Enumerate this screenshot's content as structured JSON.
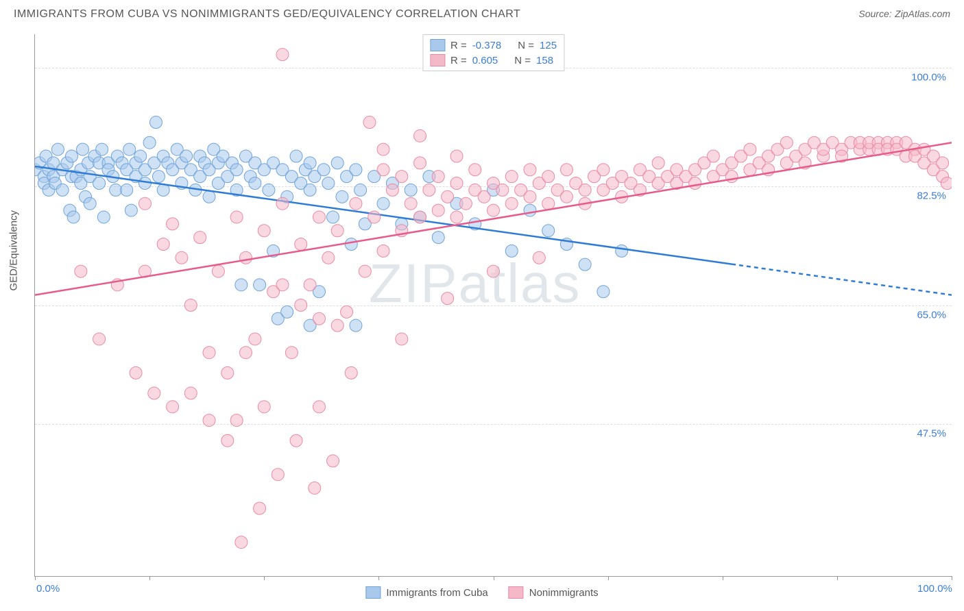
{
  "title": "IMMIGRANTS FROM CUBA VS NONIMMIGRANTS GED/EQUIVALENCY CORRELATION CHART",
  "source_label": "Source:",
  "source_name": "ZipAtlas.com",
  "watermark": "ZIPatlas",
  "y_axis_title": "GED/Equivalency",
  "chart": {
    "type": "scatter",
    "background_color": "#ffffff",
    "grid_color": "#dddddd",
    "axis_color": "#999999",
    "tick_label_color": "#3b7dd8",
    "xlim": [
      0,
      100
    ],
    "ylim": [
      25,
      105
    ],
    "x_ticks": [
      0,
      12.5,
      25,
      37.5,
      50,
      62.5,
      75,
      87.5,
      100
    ],
    "x_tick_labels": {
      "0": "0.0%",
      "100": "100.0%"
    },
    "y_grid": [
      47.5,
      65.0,
      82.5,
      100.0
    ],
    "y_tick_labels": [
      "47.5%",
      "65.0%",
      "82.5%",
      "100.0%"
    ],
    "marker_radius": 9,
    "marker_opacity": 0.55,
    "line_width": 2.5
  },
  "series": [
    {
      "id": "immigrants",
      "label": "Immigrants from Cuba",
      "color_fill": "#a8c8ec",
      "color_stroke": "#6fa3d8",
      "line_color": "#2e7cd6",
      "R": "-0.378",
      "N": "125",
      "trend": {
        "x1": 0,
        "y1": 85.5,
        "x2": 100,
        "y2": 66.5,
        "solid_until_x": 76
      },
      "points": [
        [
          0,
          85
        ],
        [
          0.5,
          86
        ],
        [
          1,
          84
        ],
        [
          1,
          83
        ],
        [
          1.2,
          87
        ],
        [
          1.5,
          85
        ],
        [
          1.5,
          82
        ],
        [
          2,
          86
        ],
        [
          2,
          84
        ],
        [
          2.2,
          83
        ],
        [
          2.5,
          88
        ],
        [
          3,
          85
        ],
        [
          3,
          82
        ],
        [
          3.5,
          86
        ],
        [
          3.8,
          79
        ],
        [
          4,
          87
        ],
        [
          4,
          84
        ],
        [
          4.2,
          78
        ],
        [
          4.5,
          84
        ],
        [
          5,
          85
        ],
        [
          5,
          83
        ],
        [
          5.2,
          88
        ],
        [
          5.5,
          81
        ],
        [
          5.8,
          86
        ],
        [
          6,
          84
        ],
        [
          6,
          80
        ],
        [
          6.5,
          87
        ],
        [
          7,
          86
        ],
        [
          7,
          83
        ],
        [
          7.3,
          88
        ],
        [
          7.5,
          78
        ],
        [
          8,
          86
        ],
        [
          8,
          85
        ],
        [
          8.5,
          84
        ],
        [
          8.8,
          82
        ],
        [
          9,
          87
        ],
        [
          9.5,
          86
        ],
        [
          10,
          85
        ],
        [
          10,
          82
        ],
        [
          10.3,
          88
        ],
        [
          10.5,
          79
        ],
        [
          11,
          86
        ],
        [
          11,
          84
        ],
        [
          11.5,
          87
        ],
        [
          12,
          85
        ],
        [
          12,
          83
        ],
        [
          12.5,
          89
        ],
        [
          13,
          86
        ],
        [
          13.2,
          92
        ],
        [
          13.5,
          84
        ],
        [
          14,
          87
        ],
        [
          14,
          82
        ],
        [
          14.5,
          86
        ],
        [
          15,
          85
        ],
        [
          15.5,
          88
        ],
        [
          16,
          86
        ],
        [
          16,
          83
        ],
        [
          16.5,
          87
        ],
        [
          17,
          85
        ],
        [
          17.5,
          82
        ],
        [
          18,
          87
        ],
        [
          18,
          84
        ],
        [
          18.5,
          86
        ],
        [
          19,
          85
        ],
        [
          19,
          81
        ],
        [
          19.5,
          88
        ],
        [
          20,
          86
        ],
        [
          20,
          83
        ],
        [
          20.5,
          87
        ],
        [
          21,
          84
        ],
        [
          21.5,
          86
        ],
        [
          22,
          85
        ],
        [
          22,
          82
        ],
        [
          22.5,
          68
        ],
        [
          23,
          87
        ],
        [
          23.5,
          84
        ],
        [
          24,
          86
        ],
        [
          24,
          83
        ],
        [
          24.5,
          68
        ],
        [
          25,
          85
        ],
        [
          25.5,
          82
        ],
        [
          26,
          86
        ],
        [
          26,
          73
        ],
        [
          26.5,
          63
        ],
        [
          27,
          85
        ],
        [
          27.5,
          64
        ],
        [
          27.5,
          81
        ],
        [
          28,
          84
        ],
        [
          28.5,
          87
        ],
        [
          29,
          83
        ],
        [
          29.5,
          85
        ],
        [
          30,
          82
        ],
        [
          30,
          86
        ],
        [
          30,
          62
        ],
        [
          30.5,
          84
        ],
        [
          31,
          67
        ],
        [
          31.5,
          85
        ],
        [
          32,
          83
        ],
        [
          32.5,
          78
        ],
        [
          33,
          86
        ],
        [
          33.5,
          81
        ],
        [
          34,
          84
        ],
        [
          34.5,
          74
        ],
        [
          35,
          85
        ],
        [
          35,
          62
        ],
        [
          35.5,
          82
        ],
        [
          36,
          77
        ],
        [
          37,
          84
        ],
        [
          38,
          80
        ],
        [
          39,
          83
        ],
        [
          40,
          77
        ],
        [
          41,
          82
        ],
        [
          42,
          78
        ],
        [
          43,
          84
        ],
        [
          44,
          75
        ],
        [
          46,
          80
        ],
        [
          48,
          77
        ],
        [
          50,
          82
        ],
        [
          52,
          73
        ],
        [
          54,
          79
        ],
        [
          56,
          76
        ],
        [
          58,
          74
        ],
        [
          60,
          71
        ],
        [
          62,
          67
        ],
        [
          64,
          73
        ]
      ]
    },
    {
      "id": "nonimmigrants",
      "label": "Nonimmigrants",
      "color_fill": "#f5b8c8",
      "color_stroke": "#e88aa5",
      "line_color": "#e85a8a",
      "R": "0.605",
      "N": "158",
      "trend": {
        "x1": 0,
        "y1": 66.5,
        "x2": 100,
        "y2": 89.0,
        "solid_until_x": 100
      },
      "points": [
        [
          5,
          70
        ],
        [
          7,
          60
        ],
        [
          9,
          68
        ],
        [
          11,
          55
        ],
        [
          12,
          70
        ],
        [
          13,
          52
        ],
        [
          14,
          74
        ],
        [
          15,
          50
        ],
        [
          16,
          72
        ],
        [
          17,
          65
        ],
        [
          18,
          75
        ],
        [
          19,
          58
        ],
        [
          20,
          70
        ],
        [
          21,
          55
        ],
        [
          22,
          78
        ],
        [
          22,
          48
        ],
        [
          22.5,
          30
        ],
        [
          23,
          72
        ],
        [
          24,
          60
        ],
        [
          24.5,
          35
        ],
        [
          25,
          76
        ],
        [
          26,
          67
        ],
        [
          26.5,
          40
        ],
        [
          27,
          80
        ],
        [
          27,
          102
        ],
        [
          28,
          58
        ],
        [
          28.5,
          45
        ],
        [
          29,
          74
        ],
        [
          30,
          68
        ],
        [
          30.5,
          38
        ],
        [
          31,
          78
        ],
        [
          31,
          50
        ],
        [
          32,
          72
        ],
        [
          32.5,
          42
        ],
        [
          33,
          76
        ],
        [
          34,
          64
        ],
        [
          34.5,
          55
        ],
        [
          35,
          80
        ],
        [
          36,
          70
        ],
        [
          36.5,
          92
        ],
        [
          37,
          78
        ],
        [
          38,
          73
        ],
        [
          38,
          85
        ],
        [
          39,
          82
        ],
        [
          40,
          76
        ],
        [
          40,
          84
        ],
        [
          41,
          80
        ],
        [
          42,
          78
        ],
        [
          42,
          86
        ],
        [
          43,
          82
        ],
        [
          44,
          79
        ],
        [
          44,
          84
        ],
        [
          45,
          81
        ],
        [
          46,
          78
        ],
        [
          46,
          83
        ],
        [
          47,
          80
        ],
        [
          48,
          82
        ],
        [
          48,
          85
        ],
        [
          49,
          81
        ],
        [
          50,
          83
        ],
        [
          50,
          79
        ],
        [
          51,
          82
        ],
        [
          52,
          84
        ],
        [
          52,
          80
        ],
        [
          53,
          82
        ],
        [
          54,
          81
        ],
        [
          54,
          85
        ],
        [
          55,
          83
        ],
        [
          56,
          80
        ],
        [
          56,
          84
        ],
        [
          57,
          82
        ],
        [
          58,
          81
        ],
        [
          58,
          85
        ],
        [
          59,
          83
        ],
        [
          60,
          82
        ],
        [
          60,
          80
        ],
        [
          61,
          84
        ],
        [
          62,
          82
        ],
        [
          62,
          85
        ],
        [
          63,
          83
        ],
        [
          64,
          81
        ],
        [
          64,
          84
        ],
        [
          65,
          83
        ],
        [
          66,
          82
        ],
        [
          66,
          85
        ],
        [
          67,
          84
        ],
        [
          68,
          83
        ],
        [
          68,
          86
        ],
        [
          69,
          84
        ],
        [
          70,
          83
        ],
        [
          70,
          85
        ],
        [
          71,
          84
        ],
        [
          72,
          85
        ],
        [
          72,
          83
        ],
        [
          73,
          86
        ],
        [
          74,
          84
        ],
        [
          74,
          87
        ],
        [
          75,
          85
        ],
        [
          76,
          86
        ],
        [
          76,
          84
        ],
        [
          77,
          87
        ],
        [
          78,
          85
        ],
        [
          78,
          88
        ],
        [
          79,
          86
        ],
        [
          80,
          87
        ],
        [
          80,
          85
        ],
        [
          81,
          88
        ],
        [
          82,
          86
        ],
        [
          82,
          89
        ],
        [
          83,
          87
        ],
        [
          84,
          88
        ],
        [
          84,
          86
        ],
        [
          85,
          89
        ],
        [
          86,
          87
        ],
        [
          86,
          88
        ],
        [
          87,
          89
        ],
        [
          88,
          88
        ],
        [
          88,
          87
        ],
        [
          89,
          89
        ],
        [
          90,
          88
        ],
        [
          90,
          89
        ],
        [
          91,
          88
        ],
        [
          91,
          89
        ],
        [
          92,
          89
        ],
        [
          92,
          88
        ],
        [
          93,
          89
        ],
        [
          93,
          88
        ],
        [
          94,
          89
        ],
        [
          94,
          88
        ],
        [
          95,
          89
        ],
        [
          95,
          87
        ],
        [
          96,
          88
        ],
        [
          96,
          87
        ],
        [
          97,
          88
        ],
        [
          97,
          86
        ],
        [
          98,
          87
        ],
        [
          98,
          85
        ],
        [
          99,
          86
        ],
        [
          99,
          84
        ],
        [
          99.5,
          83
        ],
        [
          38,
          88
        ],
        [
          42,
          90
        ],
        [
          46,
          87
        ],
        [
          12,
          80
        ],
        [
          15,
          77
        ],
        [
          33,
          62
        ],
        [
          40,
          60
        ],
        [
          45,
          66
        ],
        [
          50,
          70
        ],
        [
          55,
          72
        ],
        [
          29,
          65
        ],
        [
          31,
          63
        ],
        [
          27,
          68
        ],
        [
          25,
          50
        ],
        [
          23,
          58
        ],
        [
          21,
          45
        ],
        [
          19,
          48
        ],
        [
          17,
          52
        ]
      ]
    }
  ],
  "r_label": "R =",
  "n_label": "N ="
}
